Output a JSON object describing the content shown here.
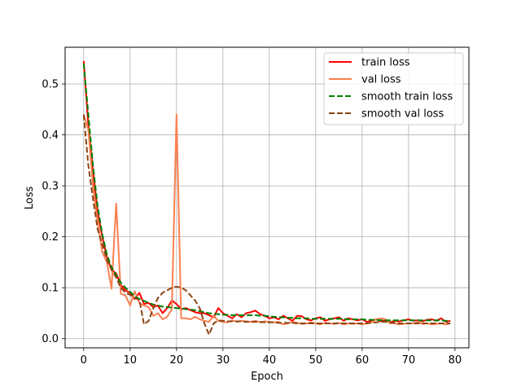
{
  "chart_data": {
    "type": "line",
    "title": "",
    "xlabel": "Epoch",
    "ylabel": "Loss",
    "xlim": [
      -4,
      83
    ],
    "ylim": [
      -0.018,
      0.572
    ],
    "xticks": [
      0,
      10,
      20,
      30,
      40,
      50,
      60,
      70,
      80
    ],
    "xtick_labels": [
      "0",
      "10",
      "20",
      "30",
      "40",
      "50",
      "60",
      "70",
      "80"
    ],
    "yticks": [
      0.0,
      0.1,
      0.2,
      0.3,
      0.4,
      0.5
    ],
    "ytick_labels": [
      "0.0",
      "0.1",
      "0.2",
      "0.3",
      "0.4",
      "0.5"
    ],
    "grid": true,
    "legend_position": "top-right",
    "series": [
      {
        "name": "train loss",
        "color": "#ff0000",
        "dash": "solid",
        "x": [
          0,
          1,
          2,
          3,
          4,
          5,
          6,
          7,
          8,
          9,
          10,
          11,
          12,
          13,
          14,
          15,
          16,
          17,
          18,
          19,
          20,
          21,
          22,
          23,
          24,
          25,
          26,
          27,
          28,
          29,
          30,
          31,
          32,
          33,
          34,
          35,
          36,
          37,
          38,
          39,
          40,
          41,
          42,
          43,
          44,
          45,
          46,
          47,
          48,
          49,
          50,
          51,
          52,
          53,
          54,
          55,
          56,
          57,
          58,
          59,
          60,
          61,
          62,
          63,
          64,
          65,
          66,
          67,
          68,
          69,
          70,
          71,
          72,
          73,
          74,
          75,
          76,
          77,
          78,
          79
        ],
        "y": [
          0.545,
          0.42,
          0.33,
          0.25,
          0.2,
          0.16,
          0.135,
          0.128,
          0.105,
          0.095,
          0.09,
          0.078,
          0.09,
          0.068,
          0.07,
          0.062,
          0.065,
          0.05,
          0.06,
          0.075,
          0.068,
          0.058,
          0.06,
          0.056,
          0.052,
          0.05,
          0.05,
          0.046,
          0.042,
          0.06,
          0.05,
          0.045,
          0.04,
          0.048,
          0.042,
          0.05,
          0.052,
          0.055,
          0.048,
          0.045,
          0.04,
          0.042,
          0.038,
          0.045,
          0.04,
          0.035,
          0.045,
          0.044,
          0.038,
          0.036,
          0.04,
          0.042,
          0.035,
          0.038,
          0.04,
          0.042,
          0.035,
          0.04,
          0.038,
          0.036,
          0.038,
          0.033,
          0.035,
          0.038,
          0.034,
          0.036,
          0.032,
          0.035,
          0.034,
          0.036,
          0.038,
          0.035,
          0.036,
          0.034,
          0.037,
          0.038,
          0.035,
          0.04,
          0.033,
          0.035
        ]
      },
      {
        "name": "val loss",
        "color": "#fa8050",
        "dash": "solid",
        "x": [
          0,
          1,
          2,
          3,
          4,
          5,
          6,
          7,
          8,
          9,
          10,
          11,
          12,
          13,
          14,
          15,
          16,
          17,
          18,
          19,
          20,
          21,
          22,
          23,
          24,
          25,
          26,
          27,
          28,
          29,
          30,
          31,
          32,
          33,
          34,
          35,
          36,
          37,
          38,
          39,
          40,
          41,
          42,
          43,
          44,
          45,
          46,
          47,
          48,
          49,
          50,
          51,
          52,
          53,
          54,
          55,
          56,
          57,
          58,
          59,
          60,
          61,
          62,
          63,
          64,
          65,
          66,
          67,
          68,
          69,
          70,
          71,
          72,
          73,
          74,
          75,
          76,
          77,
          78,
          79
        ],
        "y": [
          0.44,
          0.41,
          0.3,
          0.23,
          0.17,
          0.15,
          0.098,
          0.265,
          0.088,
          0.085,
          0.065,
          0.093,
          0.07,
          0.065,
          0.062,
          0.045,
          0.05,
          0.038,
          0.043,
          0.058,
          0.44,
          0.04,
          0.04,
          0.038,
          0.043,
          0.038,
          0.035,
          0.033,
          0.045,
          0.035,
          0.033,
          0.032,
          0.036,
          0.033,
          0.035,
          0.034,
          0.033,
          0.035,
          0.032,
          0.034,
          0.033,
          0.032,
          0.033,
          0.028,
          0.03,
          0.033,
          0.031,
          0.029,
          0.03,
          0.032,
          0.03,
          0.028,
          0.031,
          0.03,
          0.029,
          0.031,
          0.028,
          0.03,
          0.029,
          0.03,
          0.028,
          0.03,
          0.032,
          0.038,
          0.04,
          0.038,
          0.03,
          0.03,
          0.028,
          0.029,
          0.03,
          0.03,
          0.032,
          0.029,
          0.03,
          0.028,
          0.029,
          0.03,
          0.028,
          0.03
        ]
      },
      {
        "name": "smooth train loss",
        "color": "#008000",
        "dash": "dashed",
        "x": [
          0,
          1,
          2,
          3,
          4,
          5,
          6,
          7,
          8,
          9,
          10,
          11,
          12,
          13,
          14,
          15,
          16,
          17,
          18,
          19,
          20,
          21,
          22,
          23,
          24,
          25,
          26,
          27,
          28,
          29,
          30,
          31,
          32,
          33,
          34,
          35,
          36,
          37,
          38,
          39,
          40,
          41,
          42,
          43,
          44,
          45,
          46,
          47,
          48,
          49,
          50,
          51,
          52,
          53,
          54,
          55,
          56,
          57,
          58,
          59,
          60,
          61,
          62,
          63,
          64,
          65,
          66,
          67,
          68,
          69,
          70,
          71,
          72,
          73,
          74,
          75,
          76,
          77,
          78,
          79
        ],
        "y": [
          0.54,
          0.44,
          0.34,
          0.26,
          0.205,
          0.165,
          0.14,
          0.125,
          0.11,
          0.1,
          0.092,
          0.083,
          0.078,
          0.074,
          0.07,
          0.067,
          0.065,
          0.063,
          0.062,
          0.061,
          0.06,
          0.059,
          0.058,
          0.057,
          0.056,
          0.054,
          0.052,
          0.05,
          0.049,
          0.048,
          0.047,
          0.047,
          0.046,
          0.046,
          0.046,
          0.046,
          0.046,
          0.046,
          0.045,
          0.045,
          0.044,
          0.043,
          0.042,
          0.042,
          0.041,
          0.041,
          0.04,
          0.04,
          0.04,
          0.039,
          0.039,
          0.039,
          0.039,
          0.039,
          0.039,
          0.039,
          0.039,
          0.038,
          0.038,
          0.038,
          0.038,
          0.037,
          0.037,
          0.037,
          0.036,
          0.036,
          0.036,
          0.036,
          0.036,
          0.036,
          0.036,
          0.036,
          0.036,
          0.036,
          0.036,
          0.036,
          0.036,
          0.036,
          0.035,
          0.035
        ]
      },
      {
        "name": "smooth val loss",
        "color": "#8b4513",
        "dash": "dashed",
        "x": [
          0,
          1,
          2,
          3,
          4,
          5,
          6,
          7,
          8,
          9,
          10,
          11,
          12,
          13,
          14,
          15,
          16,
          17,
          18,
          19,
          20,
          21,
          22,
          23,
          24,
          25,
          26,
          27,
          28,
          29,
          30,
          31,
          32,
          33,
          34,
          35,
          36,
          37,
          38,
          39,
          40,
          41,
          42,
          43,
          44,
          45,
          46,
          47,
          48,
          49,
          50,
          51,
          52,
          53,
          54,
          55,
          56,
          57,
          58,
          59,
          60,
          61,
          62,
          63,
          64,
          65,
          66,
          67,
          68,
          69,
          70,
          71,
          72,
          73,
          74,
          75,
          76,
          77,
          78,
          79
        ],
        "y": [
          0.44,
          0.34,
          0.275,
          0.215,
          0.185,
          0.155,
          0.135,
          0.12,
          0.1,
          0.09,
          0.086,
          0.08,
          0.076,
          0.028,
          0.035,
          0.06,
          0.08,
          0.09,
          0.095,
          0.1,
          0.102,
          0.1,
          0.095,
          0.085,
          0.075,
          0.06,
          0.03,
          0.008,
          0.03,
          0.036,
          0.035,
          0.034,
          0.034,
          0.034,
          0.034,
          0.033,
          0.033,
          0.033,
          0.033,
          0.032,
          0.032,
          0.032,
          0.031,
          0.031,
          0.031,
          0.031,
          0.03,
          0.03,
          0.03,
          0.03,
          0.03,
          0.03,
          0.03,
          0.03,
          0.03,
          0.03,
          0.03,
          0.03,
          0.03,
          0.03,
          0.03,
          0.03,
          0.031,
          0.032,
          0.033,
          0.033,
          0.032,
          0.031,
          0.03,
          0.03,
          0.03,
          0.03,
          0.03,
          0.03,
          0.03,
          0.03,
          0.03,
          0.03,
          0.03,
          0.03
        ]
      }
    ]
  }
}
